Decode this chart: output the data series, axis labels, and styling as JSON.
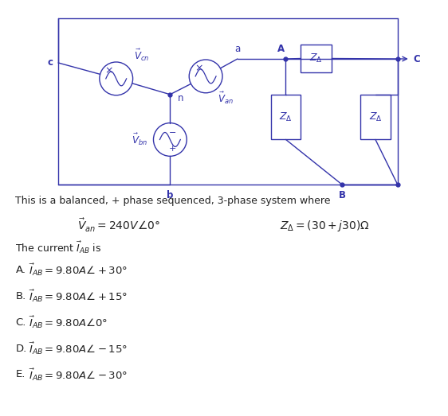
{
  "color": "#3333aa",
  "bg": "#ffffff",
  "fig_width": 5.62,
  "fig_height": 5.23,
  "text_intro": "This is a balanced, + phase sequenced, 3-phase system where",
  "choices": [
    [
      "A.",
      "$\\vec{I}_{AB} = 9.80A\\angle + 30°$"
    ],
    [
      "B.",
      "$\\vec{I}_{AB} = 9.80A\\angle + 15°$"
    ],
    [
      "C.",
      "$\\vec{I}_{AB} = 9.80A\\angle0°$"
    ],
    [
      "D.",
      "$\\vec{I}_{AB} = 9.80A\\angle - 15°$"
    ],
    [
      "E.",
      "$\\vec{I}_{AB} = 9.80A\\angle - 30°$"
    ]
  ]
}
